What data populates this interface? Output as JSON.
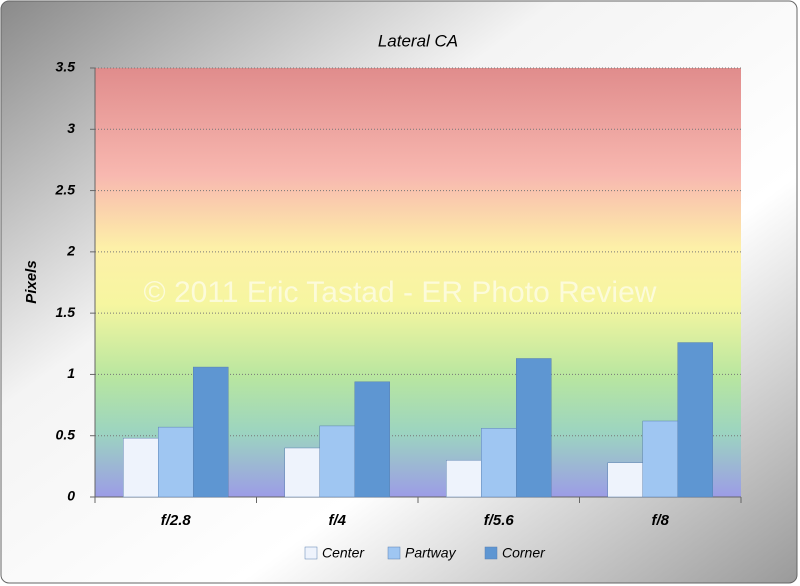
{
  "chart_data": {
    "type": "bar",
    "title": "Lateral CA",
    "y_label": "Pixels",
    "watermark": "© 2011 Eric Tastad - ER Photo Review",
    "categories": [
      "f/2.8",
      "f/4",
      "f/5.6",
      "f/8"
    ],
    "series": [
      {
        "name": "Center",
        "color": "#eef3fc",
        "values": [
          0.48,
          0.4,
          0.3,
          0.28
        ]
      },
      {
        "name": "Partway",
        "color": "#9fc6f2",
        "values": [
          0.57,
          0.58,
          0.56,
          0.62
        ]
      },
      {
        "name": "Corner",
        "color": "#5e96d2",
        "values": [
          1.06,
          0.94,
          1.13,
          1.26
        ]
      }
    ],
    "ylim": [
      0,
      3.5
    ],
    "yticks": [
      0,
      0.5,
      1,
      1.5,
      2,
      2.5,
      3,
      3.5
    ],
    "grid": true,
    "legend": "bottom"
  }
}
